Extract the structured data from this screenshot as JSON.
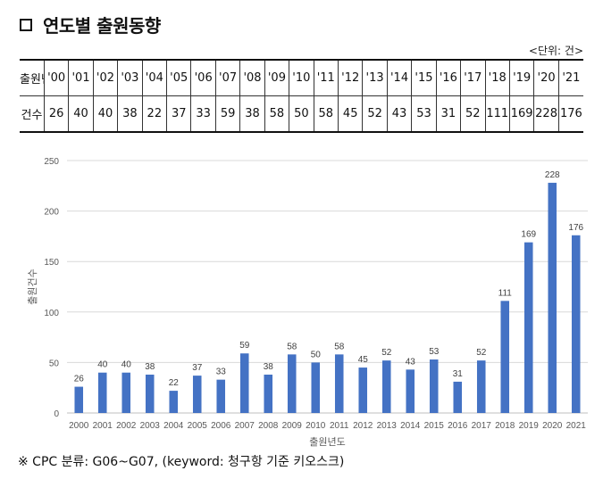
{
  "title": "연도별 출원동향",
  "unit_note": "<단위: 건>",
  "table": {
    "row1_label": "출원년",
    "row2_label": "건수",
    "years": [
      "'00",
      "'01",
      "'02",
      "'03",
      "'04",
      "'05",
      "'06",
      "'07",
      "'08",
      "'09",
      "'10",
      "'11",
      "'12",
      "'13",
      "'14",
      "'15",
      "'16",
      "'17",
      "'18",
      "'19",
      "'20",
      "'21"
    ],
    "counts": [
      "26",
      "40",
      "40",
      "38",
      "22",
      "37",
      "33",
      "59",
      "38",
      "58",
      "50",
      "58",
      "45",
      "52",
      "43",
      "53",
      "31",
      "52",
      "111",
      "169",
      "228",
      "176"
    ]
  },
  "chart_data": {
    "type": "bar",
    "categories": [
      "2000",
      "2001",
      "2002",
      "2003",
      "2004",
      "2005",
      "2006",
      "2007",
      "2008",
      "2009",
      "2010",
      "2011",
      "2012",
      "2013",
      "2014",
      "2015",
      "2016",
      "2017",
      "2018",
      "2019",
      "2020",
      "2021"
    ],
    "values": [
      26,
      40,
      40,
      38,
      22,
      37,
      33,
      59,
      38,
      58,
      50,
      58,
      45,
      52,
      43,
      53,
      31,
      52,
      111,
      169,
      228,
      176
    ],
    "xlabel": "출원년도",
    "ylabel": "출원건수",
    "ylim": [
      0,
      250
    ],
    "yticks": [
      0,
      50,
      100,
      150,
      200,
      250
    ],
    "data_labels": true,
    "grid": true,
    "bar_color": "#4472C4",
    "grid_color": "#d9d9d9"
  },
  "footnote": "※ CPC 분류: G06~G07, (keyword: 청구항 기준 키오스크)"
}
